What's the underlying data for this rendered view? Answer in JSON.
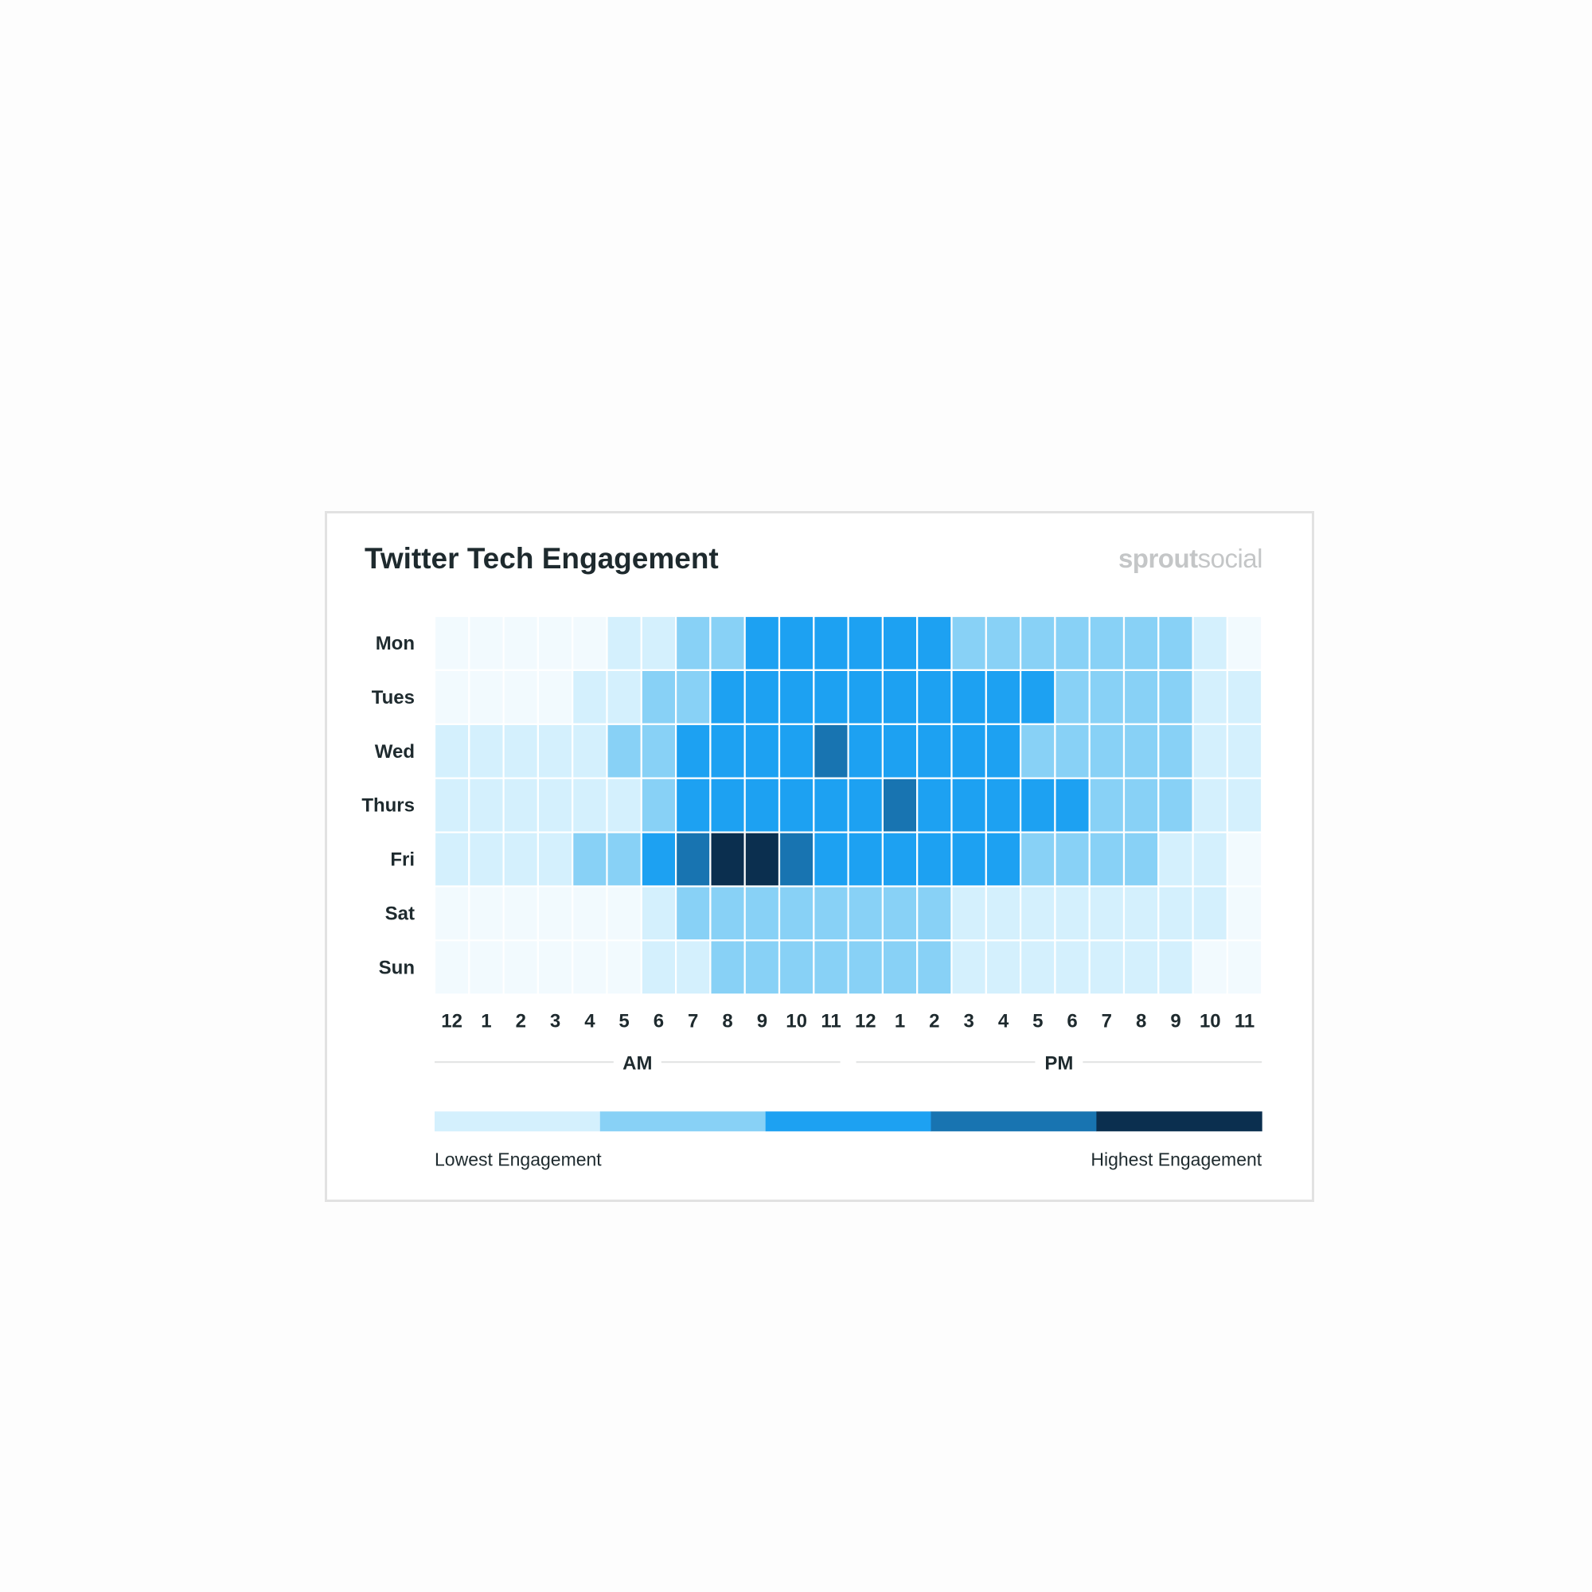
{
  "card": {
    "title": "Twitter Tech Engagement",
    "brand_bold": "sprout",
    "brand_light": "social"
  },
  "chart_data": {
    "type": "heatmap",
    "title": "Twitter Tech Engagement",
    "rows": [
      "Mon",
      "Tues",
      "Wed",
      "Thurs",
      "Fri",
      "Sat",
      "Sun"
    ],
    "columns": [
      "12",
      "1",
      "2",
      "3",
      "4",
      "5",
      "6",
      "7",
      "8",
      "9",
      "10",
      "11",
      "12",
      "1",
      "2",
      "3",
      "4",
      "5",
      "6",
      "7",
      "8",
      "9",
      "10",
      "11"
    ],
    "periods": [
      {
        "label": "AM",
        "columns": [
          0,
          11
        ]
      },
      {
        "label": "PM",
        "columns": [
          12,
          23
        ]
      }
    ],
    "scale": {
      "levels": [
        0,
        1,
        2,
        3,
        4,
        5
      ],
      "colors": [
        "#f2fafe",
        "#d4f0fd",
        "#88d1f6",
        "#1da1f2",
        "#1874b1",
        "#0b2f4f"
      ],
      "low_label": "Lowest Engagement",
      "high_label": "Highest Engagement"
    },
    "values": [
      [
        0,
        0,
        0,
        0,
        0,
        1,
        1,
        2,
        2,
        3,
        3,
        3,
        3,
        3,
        3,
        2,
        2,
        2,
        2,
        2,
        2,
        2,
        1,
        0
      ],
      [
        0,
        0,
        0,
        0,
        1,
        1,
        2,
        2,
        3,
        3,
        3,
        3,
        3,
        3,
        3,
        3,
        3,
        3,
        2,
        2,
        2,
        2,
        1,
        1
      ],
      [
        1,
        1,
        1,
        1,
        1,
        2,
        2,
        3,
        3,
        3,
        3,
        4,
        3,
        3,
        3,
        3,
        3,
        2,
        2,
        2,
        2,
        2,
        1,
        1
      ],
      [
        1,
        1,
        1,
        1,
        1,
        1,
        2,
        3,
        3,
        3,
        3,
        3,
        3,
        4,
        3,
        3,
        3,
        3,
        3,
        2,
        2,
        2,
        1,
        1
      ],
      [
        1,
        1,
        1,
        1,
        2,
        2,
        3,
        4,
        5,
        5,
        4,
        3,
        3,
        3,
        3,
        3,
        3,
        2,
        2,
        2,
        2,
        1,
        1,
        0
      ],
      [
        0,
        0,
        0,
        0,
        0,
        0,
        1,
        2,
        2,
        2,
        2,
        2,
        2,
        2,
        2,
        1,
        1,
        1,
        1,
        1,
        1,
        1,
        1,
        0
      ],
      [
        0,
        0,
        0,
        0,
        0,
        0,
        1,
        1,
        2,
        2,
        2,
        2,
        2,
        2,
        2,
        1,
        1,
        1,
        1,
        1,
        1,
        1,
        0,
        0
      ]
    ]
  }
}
